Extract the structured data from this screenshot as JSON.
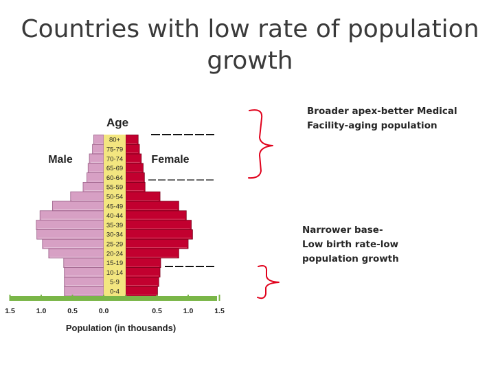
{
  "slide": {
    "title": "Countries with low rate of population growth",
    "note_top": [
      "Broader apex-better Medical",
      "Facility-aging population"
    ],
    "note_bottom": [
      "Narrower base-",
      "Low birth rate-low",
      "population growth"
    ]
  },
  "colors": {
    "male": "#d7a0c4",
    "female": "#c2002f",
    "age_band": "#f3e680",
    "axis": "#7ab648",
    "annotation": "#e0001b"
  },
  "chart_data": {
    "type": "bar",
    "orientation": "horizontal",
    "subtype": "population-pyramid",
    "title": "",
    "center_label": "Age",
    "left_label": "Male",
    "right_label": "Female",
    "xlabel": "Population (in thousands)",
    "xlim": [
      -1.5,
      1.5
    ],
    "x_ticks": [
      -1.5,
      -1.0,
      -0.5,
      0,
      0.5,
      1.0,
      1.5
    ],
    "x_tick_labels": [
      "1.5",
      "1.0",
      "0.5",
      "0.0",
      "0.5",
      "1.0",
      "1.5"
    ],
    "categories": [
      "0-4",
      "5-9",
      "10-14",
      "15-19",
      "20-24",
      "25-29",
      "30-34",
      "35-39",
      "40-44",
      "45-49",
      "50-54",
      "55-59",
      "60-64",
      "65-69",
      "70-74",
      "75-79",
      "80+"
    ],
    "series": [
      {
        "name": "Male",
        "values": [
          0.63,
          0.63,
          0.63,
          0.64,
          0.88,
          0.98,
          1.07,
          1.08,
          1.02,
          0.82,
          0.53,
          0.33,
          0.27,
          0.25,
          0.23,
          0.18,
          0.16
        ]
      },
      {
        "name": "Female",
        "values": [
          0.51,
          0.53,
          0.55,
          0.56,
          0.85,
          1.0,
          1.07,
          1.05,
          0.97,
          0.85,
          0.55,
          0.31,
          0.3,
          0.28,
          0.25,
          0.22,
          0.2
        ]
      }
    ]
  }
}
